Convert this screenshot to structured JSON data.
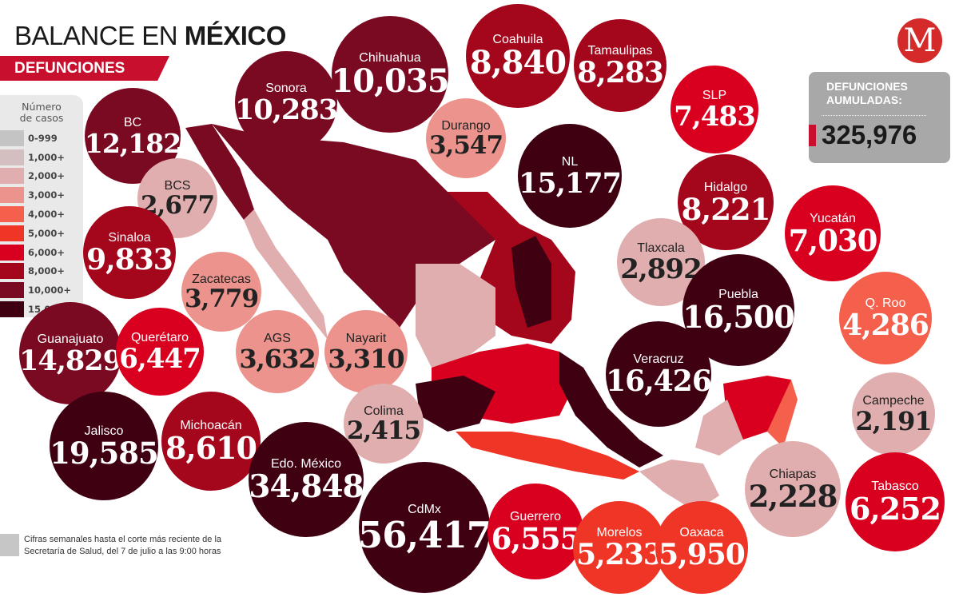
{
  "header": {
    "title_light": "BALANCE EN ",
    "title_bold": "MÉXICO",
    "subtitle": "DEFUNCIONES"
  },
  "logo": {
    "letter": "M",
    "brand_color": "#d42a2a"
  },
  "legend": {
    "title_line1": "Número",
    "title_line2": "de casos",
    "bins": [
      {
        "label": "0-999",
        "min": 0,
        "color": "#c4c4c4"
      },
      {
        "label": "1,000+",
        "min": 1000,
        "color": "#d4bfc0"
      },
      {
        "label": "2,000+",
        "min": 2000,
        "color": "#e0aeae"
      },
      {
        "label": "3,000+",
        "min": 3000,
        "color": "#eb938c"
      },
      {
        "label": "4,000+",
        "min": 4000,
        "color": "#f4604c"
      },
      {
        "label": "5,000+",
        "min": 5000,
        "color": "#ee3526"
      },
      {
        "label": "6,000+",
        "min": 6000,
        "color": "#d9001f"
      },
      {
        "label": "8,000+",
        "min": 8000,
        "color": "#a4061b"
      },
      {
        "label": "10,000+",
        "min": 10000,
        "color": "#7a0a22"
      },
      {
        "label": "15,000+",
        "min": 15000,
        "color": "#3f0012"
      }
    ]
  },
  "total": {
    "label_line1": "DEFUNCIONES",
    "label_line2": "AUMULADAS:",
    "value": "325,976"
  },
  "states": [
    {
      "name": "BC",
      "value": "12,182"
    },
    {
      "name": "Sonora",
      "value": "10,283"
    },
    {
      "name": "Chihuahua",
      "value": "10,035"
    },
    {
      "name": "Coahuila",
      "value": "8,840"
    },
    {
      "name": "Tamaulipas",
      "value": "8,283"
    },
    {
      "name": "SLP",
      "value": "7,483"
    },
    {
      "name": "Durango",
      "value": "3,547"
    },
    {
      "name": "NL",
      "value": "15,177"
    },
    {
      "name": "BCS",
      "value": "2,677"
    },
    {
      "name": "Hidalgo",
      "value": "8,221"
    },
    {
      "name": "Yucatán",
      "value": "7,030"
    },
    {
      "name": "Tlaxcala",
      "value": "2,892"
    },
    {
      "name": "Sinaloa",
      "value": "9,833"
    },
    {
      "name": "Zacatecas",
      "value": "3,779"
    },
    {
      "name": "Puebla",
      "value": "16,500"
    },
    {
      "name": "Q. Roo",
      "value": "4,286"
    },
    {
      "name": "Guanajuato",
      "value": "14,829"
    },
    {
      "name": "Querétaro",
      "value": "6,447"
    },
    {
      "name": "AGS",
      "value": "3,632"
    },
    {
      "name": "Nayarit",
      "value": "3,310"
    },
    {
      "name": "Veracruz",
      "value": "16,426"
    },
    {
      "name": "Campeche",
      "value": "2,191"
    },
    {
      "name": "Colima",
      "value": "2,415"
    },
    {
      "name": "Jalisco",
      "value": "19,585"
    },
    {
      "name": "Michoacán",
      "value": "8,610"
    },
    {
      "name": "Edo. México",
      "value": "34,848"
    },
    {
      "name": "Chiapas",
      "value": "2,228"
    },
    {
      "name": "Tabasco",
      "value": "6,252"
    },
    {
      "name": "CdMx",
      "value": "56,417"
    },
    {
      "name": "Guerrero",
      "value": "6,555"
    },
    {
      "name": "Morelos",
      "value": "5,233"
    },
    {
      "name": "Oaxaca",
      "value": "5,950"
    }
  ],
  "footnote": {
    "line1": "Cifras semanales hasta el corte más reciente de la",
    "line2": "Secretaría de Salud, del 7 de julio a las 9:00 horas"
  }
}
